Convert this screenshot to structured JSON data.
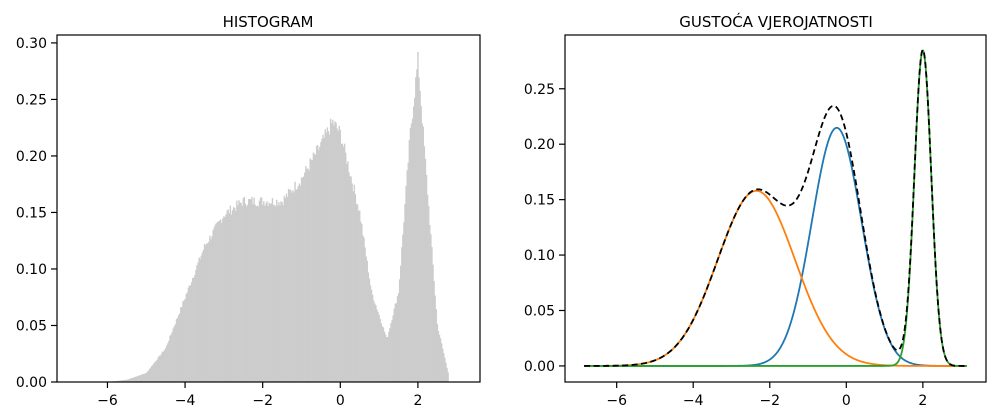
{
  "chart_data": [
    {
      "type": "bar",
      "title": "HISTOGRAM",
      "xlabel": "",
      "ylabel": "",
      "xlim": [
        -7.3,
        3.6
      ],
      "ylim": [
        0,
        0.307
      ],
      "xticks": [
        -6,
        -4,
        -2,
        0,
        2
      ],
      "yticks": [
        0.0,
        0.05,
        0.1,
        0.15,
        0.2,
        0.25,
        0.3
      ],
      "ytick_labels": [
        "0.00",
        "0.05",
        "0.10",
        "0.15",
        "0.20",
        "0.25",
        "0.30"
      ],
      "xtick_labels": [
        "−6",
        "−4",
        "−2",
        "0",
        "2"
      ],
      "bar_color": "#cccccc",
      "bins": {
        "start": -6.85,
        "end": 3.15,
        "count": 360
      },
      "approx_envelope": [
        [
          -6.0,
          0.0
        ],
        [
          -5.5,
          0.002
        ],
        [
          -5.0,
          0.008
        ],
        [
          -4.5,
          0.03
        ],
        [
          -4.0,
          0.075
        ],
        [
          -3.5,
          0.12
        ],
        [
          -3.0,
          0.148
        ],
        [
          -2.5,
          0.16
        ],
        [
          -2.0,
          0.16
        ],
        [
          -1.5,
          0.16
        ],
        [
          -1.0,
          0.18
        ],
        [
          -0.5,
          0.21
        ],
        [
          -0.2,
          0.23
        ],
        [
          0.0,
          0.22
        ],
        [
          0.5,
          0.15
        ],
        [
          0.8,
          0.08
        ],
        [
          1.2,
          0.038
        ],
        [
          1.5,
          0.08
        ],
        [
          1.8,
          0.22
        ],
        [
          2.0,
          0.285
        ],
        [
          2.2,
          0.19
        ],
        [
          2.5,
          0.05
        ],
        [
          2.8,
          0.005
        ]
      ],
      "grid": false
    },
    {
      "type": "line",
      "title": "GUSTOĆA VJEROJATNOSTI",
      "xlabel": "",
      "ylabel": "",
      "xlim": [
        -7.35,
        3.65
      ],
      "ylim": [
        -0.0145,
        0.2985
      ],
      "xticks": [
        -6,
        -4,
        -2,
        0,
        2
      ],
      "yticks": [
        0.0,
        0.05,
        0.1,
        0.15,
        0.2,
        0.25
      ],
      "ytick_labels": [
        "0.00",
        "0.05",
        "0.10",
        "0.15",
        "0.20",
        "0.25"
      ],
      "xtick_labels": [
        "−6",
        "−4",
        "−2",
        "0",
        "2"
      ],
      "x_range": [
        -6.85,
        3.15
      ],
      "components": [
        {
          "mean": -0.25,
          "sd": 0.65,
          "weight": 0.35,
          "color": "#1f77b4"
        },
        {
          "mean": -2.35,
          "sd": 1.01,
          "weight": 0.4,
          "color": "#ff7f0e"
        },
        {
          "mean": 2.0,
          "sd": 0.22,
          "weight": 0.157,
          "color": "#2ca02c"
        }
      ],
      "mixture": {
        "style": "dashed",
        "color": "#000000"
      },
      "grid": false
    }
  ]
}
